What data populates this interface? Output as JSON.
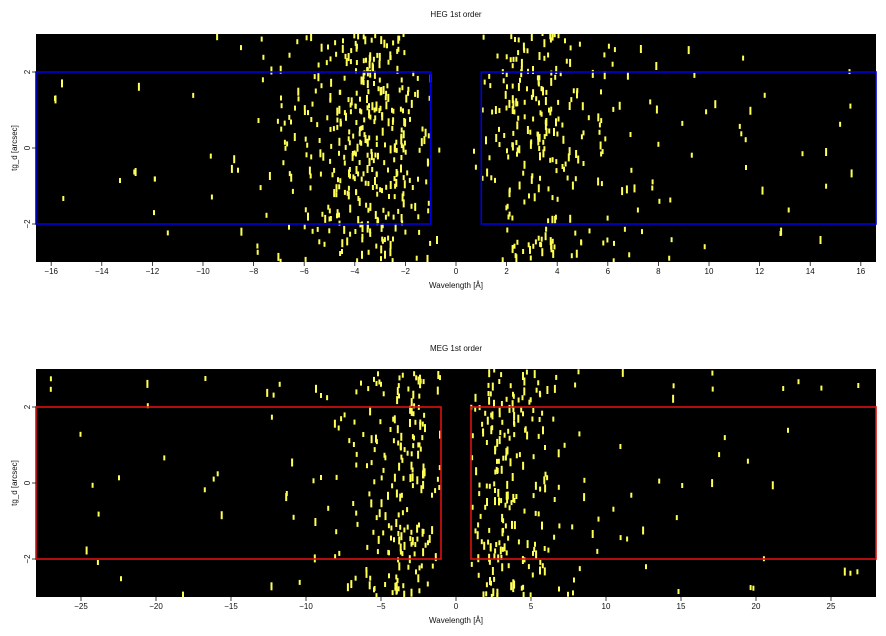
{
  "chart_data": [
    {
      "type": "scatter",
      "title": "HEG 1st order",
      "xlabel": "Wavelength [Å]",
      "ylabel": "tg_d [arcsec]",
      "xlim": [
        -16.6,
        16.6
      ],
      "ylim": [
        -3.0,
        3.0
      ],
      "xticks": [
        -16,
        -14,
        -12,
        -10,
        -8,
        -6,
        -4,
        -2,
        0,
        2,
        4,
        6,
        8,
        10,
        12,
        14,
        16
      ],
      "xtick_labels": [
        "−16",
        "−14",
        "−12",
        "−10",
        "−8",
        "−6",
        "−4",
        "−2",
        "0",
        "2",
        "4",
        "6",
        "8",
        "10",
        "12",
        "14",
        "16"
      ],
      "yticks": [
        -2,
        0,
        2
      ],
      "ytick_labels": [
        "−2",
        "0",
        "2"
      ],
      "background": "#000000",
      "event_color": "#ffff55",
      "region_color": "#0000dd",
      "regions": [
        {
          "x": [
            -16.6,
            -1.0
          ],
          "y": [
            -2.0,
            2.0
          ]
        },
        {
          "x": [
            1.0,
            16.6
          ],
          "y": [
            -2.0,
            2.0
          ]
        }
      ],
      "events": {
        "bins": [
          {
            "center": -15.0,
            "width": 2.0,
            "count": 4
          },
          {
            "center": -13.0,
            "width": 2.0,
            "count": 4
          },
          {
            "center": -11.0,
            "width": 2.0,
            "count": 5
          },
          {
            "center": -9.0,
            "width": 2.0,
            "count": 8
          },
          {
            "center": -7.5,
            "width": 1.0,
            "count": 12
          },
          {
            "center": -6.5,
            "width": 1.0,
            "count": 22
          },
          {
            "center": -5.5,
            "width": 1.0,
            "count": 40
          },
          {
            "center": -4.5,
            "width": 1.0,
            "count": 75
          },
          {
            "center": -3.5,
            "width": 1.0,
            "count": 125
          },
          {
            "center": -2.5,
            "width": 1.0,
            "count": 95
          },
          {
            "center": -1.5,
            "width": 1.0,
            "count": 35
          },
          {
            "center": -0.75,
            "width": 0.5,
            "count": 2
          },
          {
            "center": 0.75,
            "width": 0.5,
            "count": 2
          },
          {
            "center": 1.5,
            "width": 1.0,
            "count": 25
          },
          {
            "center": 2.5,
            "width": 1.0,
            "count": 70
          },
          {
            "center": 3.5,
            "width": 1.0,
            "count": 80
          },
          {
            "center": 4.5,
            "width": 1.0,
            "count": 35
          },
          {
            "center": 5.5,
            "width": 1.0,
            "count": 22
          },
          {
            "center": 6.5,
            "width": 1.0,
            "count": 14
          },
          {
            "center": 7.5,
            "width": 1.0,
            "count": 10
          },
          {
            "center": 9.0,
            "width": 2.0,
            "count": 10
          },
          {
            "center": 11.0,
            "width": 2.0,
            "count": 7
          },
          {
            "center": 13.0,
            "width": 2.0,
            "count": 6
          },
          {
            "center": 15.5,
            "width": 2.2,
            "count": 7
          }
        ],
        "seed": 11
      }
    },
    {
      "type": "scatter",
      "title": "MEG 1st order",
      "xlabel": "Wavelength [Å]",
      "ylabel": "tg_d [arcsec]",
      "xlim": [
        -28,
        28
      ],
      "ylim": [
        -3.0,
        3.0
      ],
      "xticks": [
        -25,
        -20,
        -15,
        -10,
        -5,
        0,
        5,
        10,
        15,
        20,
        25
      ],
      "xtick_labels": [
        "−25",
        "−20",
        "−15",
        "−10",
        "−5",
        "0",
        "5",
        "10",
        "15",
        "20",
        "25"
      ],
      "yticks": [
        -2,
        0,
        2
      ],
      "ytick_labels": [
        "−2",
        "0",
        "2"
      ],
      "background": "#000000",
      "event_color": "#ffff55",
      "region_color": "#dd1111",
      "regions": [
        {
          "x": [
            -28,
            -1.0
          ],
          "y": [
            -2.0,
            2.0
          ]
        },
        {
          "x": [
            1.0,
            28
          ],
          "y": [
            -2.0,
            2.0
          ]
        }
      ],
      "events": {
        "bins": [
          {
            "center": -26.0,
            "width": 4.0,
            "count": 5
          },
          {
            "center": -22.0,
            "width": 4.0,
            "count": 6
          },
          {
            "center": -18.0,
            "width": 4.0,
            "count": 5
          },
          {
            "center": -14.0,
            "width": 4.0,
            "count": 6
          },
          {
            "center": -11.0,
            "width": 2.0,
            "count": 6
          },
          {
            "center": -9.0,
            "width": 2.0,
            "count": 10
          },
          {
            "center": -7.0,
            "width": 2.0,
            "count": 20
          },
          {
            "center": -5.0,
            "width": 2.0,
            "count": 55
          },
          {
            "center": -3.0,
            "width": 2.0,
            "count": 110
          },
          {
            "center": -1.5,
            "width": 1.0,
            "count": 15
          },
          {
            "center": 1.5,
            "width": 1.0,
            "count": 25
          },
          {
            "center": 3.0,
            "width": 2.0,
            "count": 110
          },
          {
            "center": 5.0,
            "width": 2.0,
            "count": 60
          },
          {
            "center": 7.0,
            "width": 2.0,
            "count": 18
          },
          {
            "center": 9.0,
            "width": 2.0,
            "count": 8
          },
          {
            "center": 11.0,
            "width": 2.0,
            "count": 6
          },
          {
            "center": 14.0,
            "width": 4.0,
            "count": 8
          },
          {
            "center": 18.0,
            "width": 4.0,
            "count": 8
          },
          {
            "center": 22.0,
            "width": 4.0,
            "count": 5
          },
          {
            "center": 26.0,
            "width": 4.0,
            "count": 5
          }
        ],
        "seed": 29
      }
    }
  ]
}
